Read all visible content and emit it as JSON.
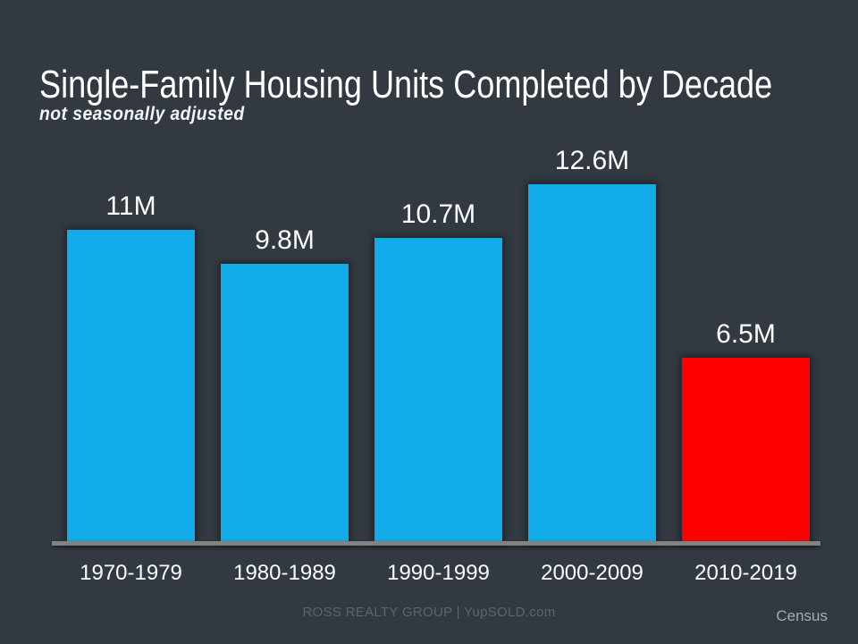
{
  "slide": {
    "title": "Single-Family Housing Units Completed by Decade",
    "subtitle": "not seasonally adjusted",
    "footer": "ROSS REALTY GROUP | YupSOLD.com",
    "source": "Census"
  },
  "colors": {
    "background": "#323941",
    "bar_blue": "#12ACEA",
    "bar_red": "#FF0000",
    "axis": "#828282",
    "label_text": "#FBFCFD",
    "footer_text": "#5D646C",
    "source_text": "#A6ABB0"
  },
  "chart_data": {
    "type": "bar",
    "title": "Single-Family Housing Units Completed by Decade",
    "subtitle": "not seasonally adjusted",
    "categories": [
      "1970-1979",
      "1980-1989",
      "1990-1999",
      "2000-2009",
      "2010-2019"
    ],
    "values": [
      11,
      9.8,
      10.7,
      12.6,
      6.5
    ],
    "value_labels": [
      "11M",
      "9.8M",
      "10.7M",
      "12.6M",
      "6.5M"
    ],
    "bar_colors": [
      "#12ACEA",
      "#12ACEA",
      "#12ACEA",
      "#12ACEA",
      "#FF0000"
    ],
    "ylim": [
      0,
      12.6
    ],
    "grid": false,
    "legend": false,
    "value_labels_position": "above-bars",
    "axis_labels_position": "below-axis"
  }
}
